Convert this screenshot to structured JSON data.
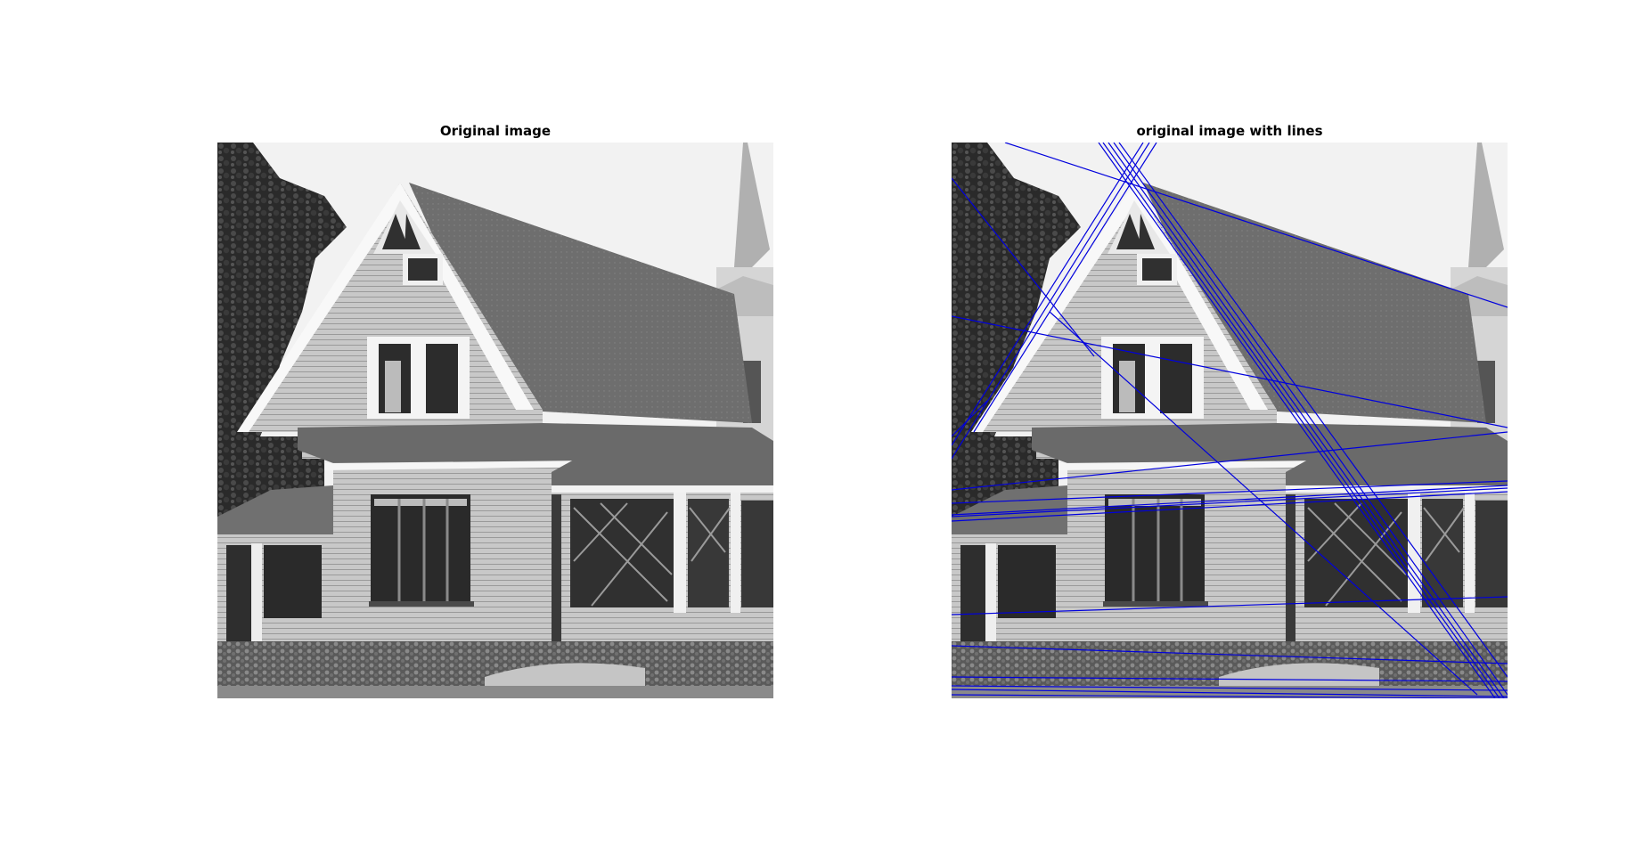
{
  "figure": {
    "background_color": "#ffffff"
  },
  "panels": [
    {
      "title": "Original image",
      "content": "grayscale photograph of a gabled wooden house"
    },
    {
      "title": "original image with lines",
      "content": "same photograph with detected straight lines overlaid",
      "line_color": "#0000dd"
    }
  ]
}
